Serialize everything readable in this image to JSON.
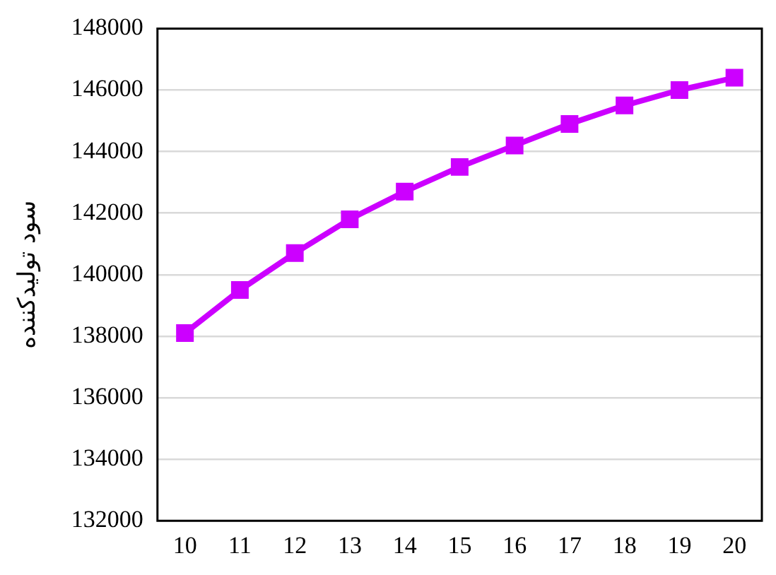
{
  "chart_data": {
    "type": "line",
    "ylabel": "سود تولیدکننده",
    "categories": [
      "10",
      "11",
      "12",
      "13",
      "14",
      "15",
      "16",
      "17",
      "18",
      "19",
      "20"
    ],
    "series": [
      {
        "color": "#cc00ff",
        "values": [
          138100,
          139500,
          140700,
          141800,
          142700,
          143500,
          144200,
          144900,
          145500,
          146000,
          146400
        ]
      }
    ],
    "ylim": [
      132000,
      148000
    ],
    "yticks": [
      132000,
      134000,
      136000,
      138000,
      140000,
      142000,
      144000,
      146000,
      148000
    ],
    "grid": "y",
    "legend": false,
    "marker": "square",
    "line_style": "solid"
  }
}
